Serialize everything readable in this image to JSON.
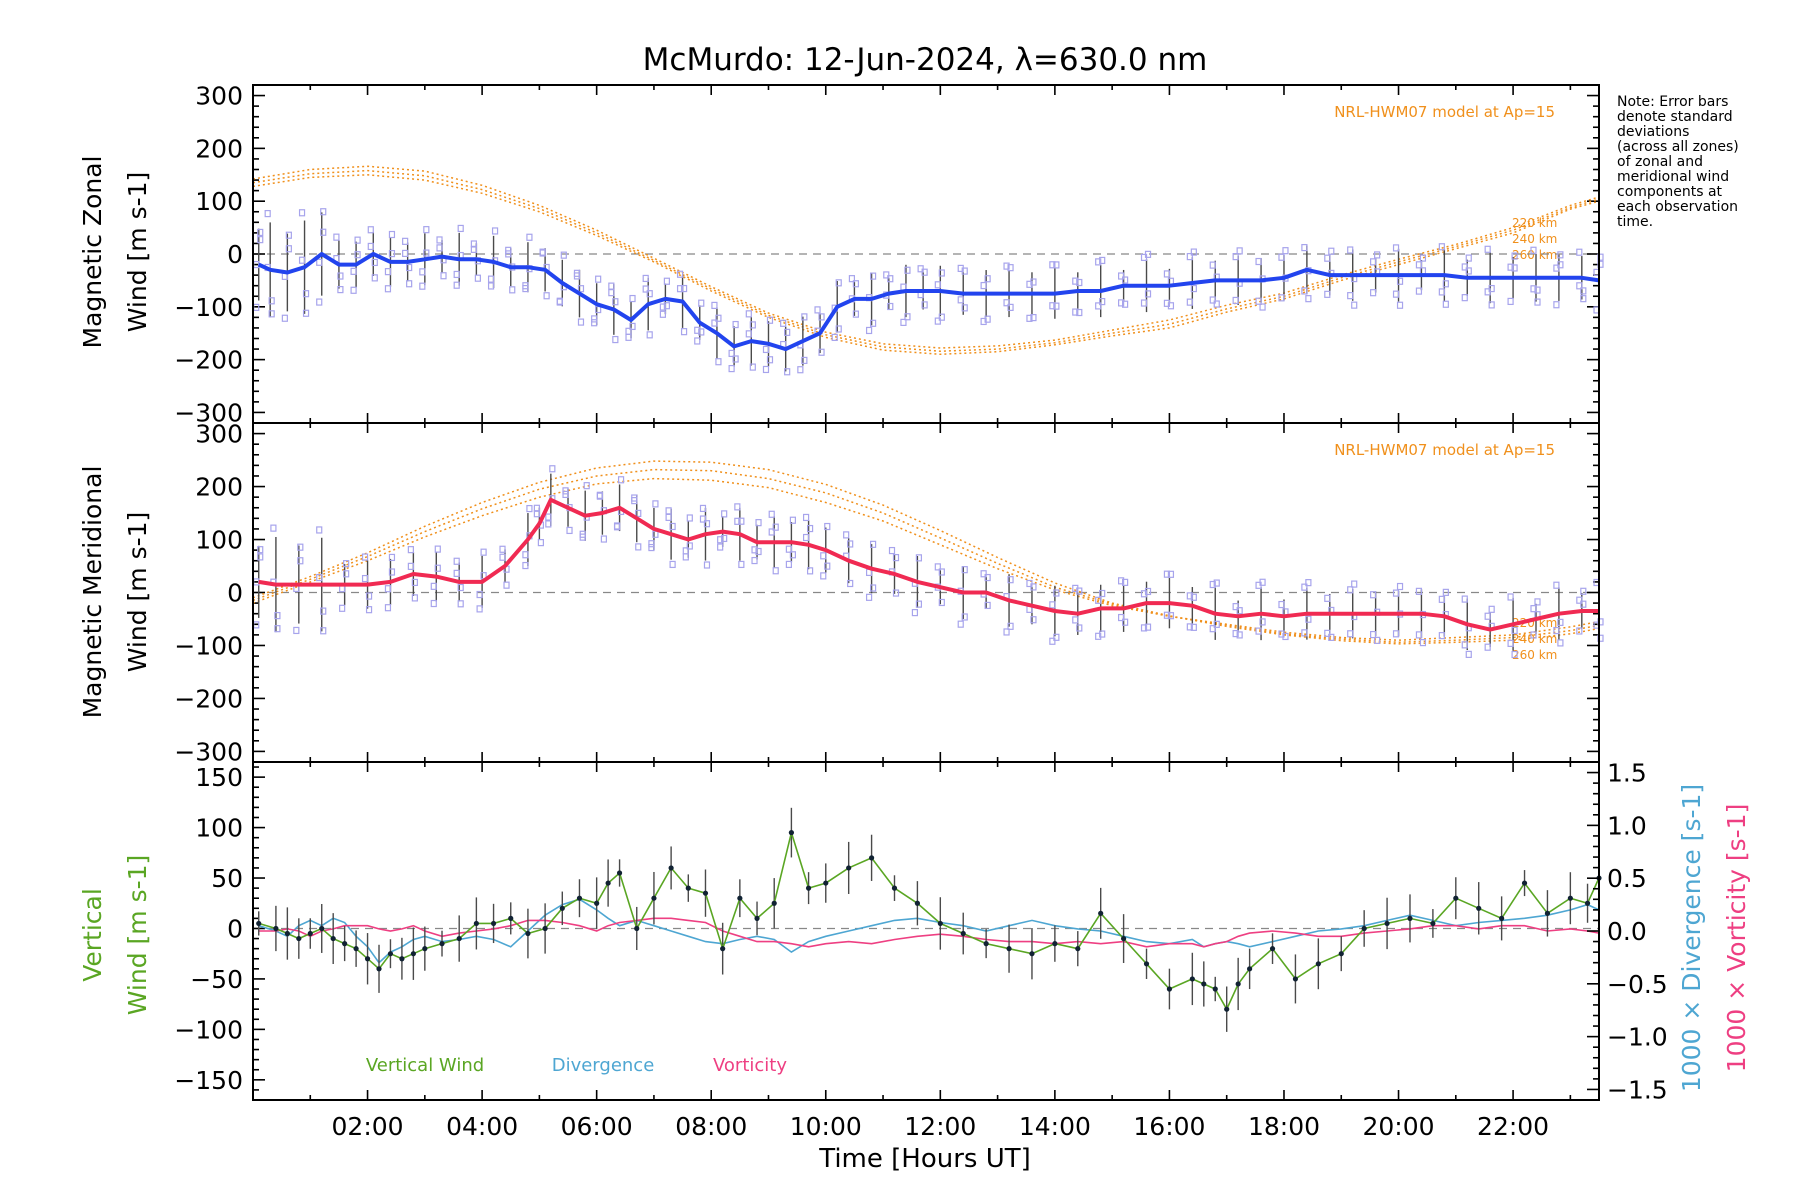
{
  "title": "McMurdo: 12-Jun-2024, λ=630.0 nm",
  "note_lines": [
    "Note: Error bars",
    "denote standard",
    "deviations",
    "(across all zones)",
    "of zonal and",
    "meridional wind",
    "components at",
    "each observation",
    "time."
  ],
  "x_axis_label": "Time [Hours UT]",
  "x_tick_labels": [
    "02:00",
    "04:00",
    "06:00",
    "08:00",
    "10:00",
    "12:00",
    "14:00",
    "16:00",
    "18:00",
    "20:00",
    "22:00"
  ],
  "colors": {
    "zonal": "#2244ee",
    "meridional": "#f02a52",
    "vertical": "#5aa623",
    "divergence": "#4ea6d2",
    "vorticity": "#ee3f82",
    "model": "#f0901c",
    "zones": "#a7a4ec"
  },
  "chart_data": [
    {
      "type": "line",
      "panel": "zonal",
      "ylabel_line1": "Magnetic Zonal",
      "ylabel_line2": "Wind [m s-1]",
      "model_label": "NRL-HWM07 model at Ap=15",
      "altitude_labels": [
        "220 km",
        "240 km",
        "260 km"
      ],
      "xlim": [
        0,
        23.5
      ],
      "ylim": [
        -320,
        320
      ],
      "yticks": [
        -300,
        -200,
        -100,
        0,
        100,
        200,
        300
      ],
      "x": [
        0.1,
        0.3,
        0.6,
        0.9,
        1.2,
        1.5,
        1.8,
        2.1,
        2.4,
        2.7,
        3.0,
        3.3,
        3.6,
        3.9,
        4.2,
        4.5,
        4.8,
        5.1,
        5.4,
        5.7,
        6.0,
        6.3,
        6.6,
        6.9,
        7.2,
        7.5,
        7.8,
        8.1,
        8.4,
        8.7,
        9.0,
        9.3,
        9.6,
        9.9,
        10.2,
        10.5,
        10.8,
        11.1,
        11.4,
        11.7,
        12.0,
        12.4,
        12.8,
        13.2,
        13.6,
        14.0,
        14.4,
        14.8,
        15.2,
        15.6,
        16.0,
        16.4,
        16.8,
        17.2,
        17.6,
        18.0,
        18.4,
        18.8,
        19.2,
        19.6,
        20.0,
        20.4,
        20.8,
        21.2,
        21.6,
        22.0,
        22.4,
        22.8,
        23.2,
        23.5
      ],
      "wind": [
        -20,
        -30,
        -35,
        -25,
        0,
        -20,
        -20,
        0,
        -15,
        -15,
        -10,
        -5,
        -10,
        -10,
        -15,
        -25,
        -25,
        -30,
        -55,
        -75,
        -95,
        -105,
        -125,
        -95,
        -85,
        -90,
        -130,
        -150,
        -175,
        -165,
        -170,
        -180,
        -165,
        -150,
        -100,
        -85,
        -85,
        -75,
        -70,
        -70,
        -70,
        -75,
        -75,
        -75,
        -75,
        -75,
        -70,
        -70,
        -60,
        -60,
        -60,
        -55,
        -50,
        -50,
        -50,
        -45,
        -30,
        -40,
        -40,
        -40,
        -40,
        -40,
        -40,
        -45,
        -45,
        -45,
        -45,
        -45,
        -45,
        -50
      ],
      "model": {
        "x": [
          0,
          1,
          2,
          3,
          4,
          5,
          6,
          7,
          8,
          9,
          10,
          11,
          12,
          13,
          14,
          15,
          16,
          17,
          18,
          19,
          20,
          21,
          22,
          23,
          23.5
        ],
        "220 km": [
          128,
          145,
          150,
          140,
          115,
          80,
          35,
          -15,
          -70,
          -120,
          -158,
          -182,
          -190,
          -185,
          -172,
          -155,
          -140,
          -110,
          -85,
          -50,
          -20,
          10,
          40,
          85,
          100
        ],
        "240 km": [
          135,
          152,
          158,
          148,
          122,
          86,
          40,
          -12,
          -66,
          -116,
          -153,
          -176,
          -184,
          -180,
          -168,
          -150,
          -133,
          -104,
          -80,
          -45,
          -15,
          14,
          45,
          88,
          104
        ],
        "260 km": [
          142,
          160,
          166,
          157,
          130,
          92,
          45,
          -8,
          -62,
          -112,
          -148,
          -170,
          -178,
          -174,
          -163,
          -144,
          -125,
          -97,
          -74,
          -40,
          -10,
          18,
          50,
          92,
          108
        ]
      }
    },
    {
      "type": "line",
      "panel": "meridional",
      "ylabel_line1": "Magnetic Meridional",
      "ylabel_line2": "Wind [m s-1]",
      "model_label": "NRL-HWM07 model at Ap=15",
      "altitude_labels": [
        "220 km",
        "240 km",
        "260 km"
      ],
      "xlim": [
        0,
        23.5
      ],
      "ylim": [
        -320,
        320
      ],
      "yticks": [
        -300,
        -200,
        -100,
        0,
        100,
        200,
        300
      ],
      "x": [
        0.1,
        0.4,
        0.8,
        1.2,
        1.6,
        2.0,
        2.4,
        2.8,
        3.2,
        3.6,
        4.0,
        4.4,
        4.8,
        5.0,
        5.2,
        5.5,
        5.8,
        6.1,
        6.4,
        6.7,
        7.0,
        7.3,
        7.6,
        7.9,
        8.2,
        8.5,
        8.8,
        9.1,
        9.4,
        9.7,
        10.0,
        10.4,
        10.8,
        11.2,
        11.6,
        12.0,
        12.4,
        12.8,
        13.2,
        13.6,
        14.0,
        14.4,
        14.8,
        15.2,
        15.6,
        16.0,
        16.4,
        16.8,
        17.2,
        17.6,
        18.0,
        18.4,
        18.8,
        19.2,
        19.6,
        20.0,
        20.4,
        20.8,
        21.2,
        21.6,
        22.0,
        22.4,
        22.8,
        23.2,
        23.5
      ],
      "wind": [
        20,
        15,
        15,
        15,
        15,
        15,
        20,
        35,
        30,
        20,
        20,
        50,
        100,
        130,
        175,
        160,
        145,
        150,
        160,
        140,
        120,
        110,
        100,
        110,
        115,
        110,
        95,
        95,
        95,
        90,
        80,
        60,
        45,
        35,
        20,
        10,
        0,
        0,
        -15,
        -25,
        -35,
        -40,
        -30,
        -30,
        -20,
        -20,
        -25,
        -40,
        -45,
        -40,
        -45,
        -40,
        -40,
        -40,
        -40,
        -40,
        -40,
        -45,
        -60,
        -70,
        -60,
        -50,
        -40,
        -35,
        -35
      ],
      "model": {
        "x": [
          0,
          1,
          2,
          3,
          4,
          5,
          6,
          7,
          8,
          9,
          10,
          11,
          12,
          13,
          14,
          15,
          16,
          17,
          18,
          19,
          20,
          21,
          22,
          23,
          23.5
        ],
        "220 km": [
          -20,
          20,
          60,
          105,
          145,
          180,
          205,
          215,
          212,
          198,
          170,
          135,
          90,
          45,
          5,
          -25,
          -45,
          -60,
          -75,
          -85,
          -90,
          -85,
          -80,
          -65,
          -55
        ],
        "240 km": [
          -15,
          25,
          68,
          115,
          158,
          195,
          220,
          232,
          230,
          215,
          188,
          150,
          103,
          55,
          10,
          -22,
          -45,
          -62,
          -78,
          -88,
          -94,
          -90,
          -85,
          -72,
          -62
        ],
        "260 km": [
          -10,
          30,
          75,
          125,
          170,
          208,
          235,
          248,
          246,
          232,
          204,
          165,
          117,
          66,
          18,
          -20,
          -44,
          -64,
          -80,
          -91,
          -97,
          -94,
          -90,
          -78,
          -68
        ]
      }
    },
    {
      "type": "line",
      "panel": "vertical",
      "ylabel_line1": "Vertical",
      "ylabel_line2": "Wind [m s-1]",
      "y2label_div": "1000 × Divergence [s-1]",
      "y2label_vort": "1000 × Vorticity [s-1]",
      "legend": [
        "Vertical Wind",
        "Divergence",
        "Vorticity"
      ],
      "legend_position": "bottom-left",
      "xlim": [
        0,
        23.5
      ],
      "ylim": [
        -170,
        165
      ],
      "yticks": [
        -150,
        -100,
        -50,
        0,
        50,
        100,
        150
      ],
      "y2lim": [
        -1.6,
        1.6
      ],
      "y2ticks": [
        -1.5,
        -1.0,
        -0.5,
        0.0,
        0.5,
        1.0,
        1.5
      ],
      "x": [
        0.1,
        0.4,
        0.6,
        0.8,
        1.0,
        1.2,
        1.4,
        1.6,
        1.8,
        2.0,
        2.2,
        2.4,
        2.6,
        2.8,
        3.0,
        3.3,
        3.6,
        3.9,
        4.2,
        4.5,
        4.8,
        5.1,
        5.4,
        5.7,
        6.0,
        6.2,
        6.4,
        6.7,
        7.0,
        7.3,
        7.6,
        7.9,
        8.2,
        8.5,
        8.8,
        9.1,
        9.4,
        9.7,
        10.0,
        10.4,
        10.8,
        11.2,
        11.6,
        12.0,
        12.4,
        12.8,
        13.2,
        13.6,
        14.0,
        14.4,
        14.8,
        15.2,
        15.6,
        16.0,
        16.4,
        16.6,
        16.8,
        17.0,
        17.2,
        17.4,
        17.8,
        18.2,
        18.6,
        19.0,
        19.4,
        19.8,
        20.2,
        20.6,
        21.0,
        21.4,
        21.8,
        22.2,
        22.6,
        23.0,
        23.3,
        23.5
      ],
      "wind": [
        5,
        0,
        -5,
        -10,
        -5,
        0,
        -10,
        -15,
        -20,
        -30,
        -40,
        -25,
        -30,
        -25,
        -20,
        -15,
        -10,
        5,
        5,
        10,
        -5,
        0,
        20,
        30,
        25,
        45,
        55,
        0,
        30,
        60,
        40,
        35,
        -20,
        30,
        10,
        25,
        95,
        40,
        45,
        60,
        70,
        40,
        25,
        5,
        -5,
        -15,
        -20,
        -25,
        -15,
        -20,
        15,
        -10,
        -35,
        -60,
        -50,
        -55,
        -60,
        -80,
        -55,
        -40,
        -20,
        -50,
        -35,
        -25,
        0,
        5,
        10,
        5,
        30,
        20,
        10,
        45,
        15,
        30,
        25,
        50
      ],
      "divergence": [
        0.05,
        0.0,
        -0.05,
        0.05,
        0.1,
        0.05,
        0.12,
        0.08,
        -0.05,
        -0.15,
        -0.3,
        -0.2,
        -0.15,
        -0.08,
        -0.05,
        -0.1,
        -0.08,
        -0.05,
        -0.08,
        -0.15,
        0.0,
        0.15,
        0.25,
        0.3,
        0.2,
        0.12,
        0.05,
        0.1,
        0.05,
        0.0,
        -0.05,
        -0.1,
        -0.12,
        -0.08,
        -0.05,
        -0.08,
        -0.2,
        -0.1,
        -0.05,
        0.0,
        0.05,
        0.1,
        0.12,
        0.08,
        0.05,
        0.0,
        0.05,
        0.1,
        0.05,
        0.02,
        0.0,
        -0.05,
        -0.1,
        -0.12,
        -0.08,
        -0.15,
        -0.12,
        -0.1,
        -0.12,
        -0.15,
        -0.1,
        -0.05,
        0.0,
        0.02,
        0.05,
        0.1,
        0.15,
        0.1,
        0.05,
        0.08,
        0.1,
        0.12,
        0.15,
        0.2,
        0.25,
        0.2
      ],
      "vorticity": [
        0.0,
        0.0,
        0.02,
        0.0,
        -0.05,
        0.0,
        0.02,
        0.05,
        0.05,
        0.05,
        0.02,
        0.0,
        0.02,
        0.05,
        0.0,
        -0.05,
        -0.02,
        0.0,
        0.02,
        0.05,
        0.1,
        0.1,
        0.08,
        0.05,
        0.0,
        0.05,
        0.08,
        0.1,
        0.12,
        0.12,
        0.1,
        0.08,
        0.0,
        -0.05,
        -0.1,
        -0.1,
        -0.12,
        -0.15,
        -0.12,
        -0.1,
        -0.12,
        -0.08,
        -0.05,
        -0.03,
        -0.05,
        -0.08,
        -0.1,
        -0.1,
        -0.12,
        -0.1,
        -0.12,
        -0.1,
        -0.15,
        -0.12,
        -0.12,
        -0.15,
        -0.12,
        -0.1,
        -0.05,
        -0.02,
        0.0,
        -0.02,
        -0.05,
        -0.05,
        -0.02,
        0.0,
        0.02,
        0.05,
        0.05,
        0.02,
        0.05,
        0.05,
        0.0,
        0.02,
        0.0,
        -0.02
      ]
    }
  ]
}
